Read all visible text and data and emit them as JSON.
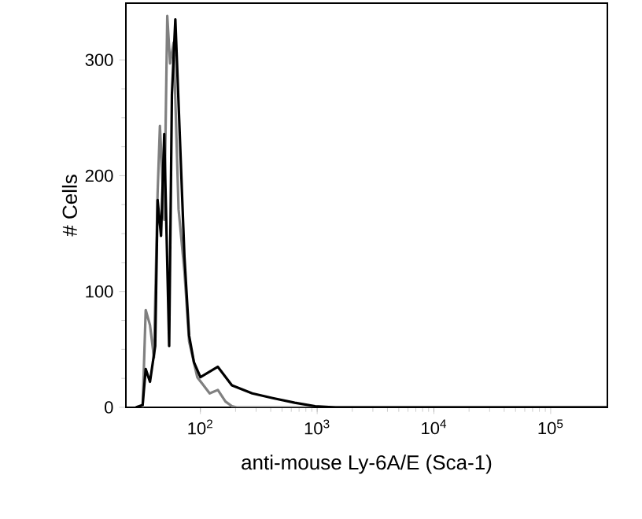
{
  "chart_data": {
    "type": "line",
    "xlabel": "anti-mouse Ly-6A/E (Sca-1)",
    "ylabel": "# Cells",
    "log": "x",
    "xlim": [
      23,
      306000
    ],
    "ylim": [
      0,
      349
    ],
    "xticks": [
      {
        "value": 100,
        "label": "10$^{2}$"
      },
      {
        "value": 1000,
        "label": "10$^{3}$"
      },
      {
        "value": 10000,
        "label": "10$^{4}$"
      },
      {
        "value": 100000,
        "label": "10$^{5}$"
      }
    ],
    "yticks": [
      0,
      100,
      200,
      300
    ],
    "grid": false,
    "marker": "none",
    "line_style": "solid",
    "series": [
      {
        "color": "#808080",
        "x": [
          32,
          34,
          37,
          40,
          43,
          45,
          49,
          52,
          55,
          59,
          65,
          73,
          80,
          94,
          120,
          141,
          164,
          186,
          204,
          306000
        ],
        "values": [
          0,
          84,
          71,
          43,
          185,
          243,
          162,
          338,
          297,
          315,
          171,
          117,
          57,
          26,
          12,
          15,
          5,
          1,
          0,
          0
        ]
      },
      {
        "color": "#000000",
        "x": [
          28,
          32,
          34,
          37,
          41,
          43,
          46,
          49,
          54,
          57,
          61,
          73,
          80,
          88,
          100,
          141,
          186,
          278,
          416,
          642,
          960,
          1437,
          306000
        ],
        "values": [
          0,
          2,
          33,
          22,
          53,
          179,
          148,
          236,
          53,
          270,
          335,
          130,
          62,
          39,
          26,
          35,
          19,
          12,
          8,
          4,
          1,
          0,
          0
        ]
      }
    ]
  }
}
